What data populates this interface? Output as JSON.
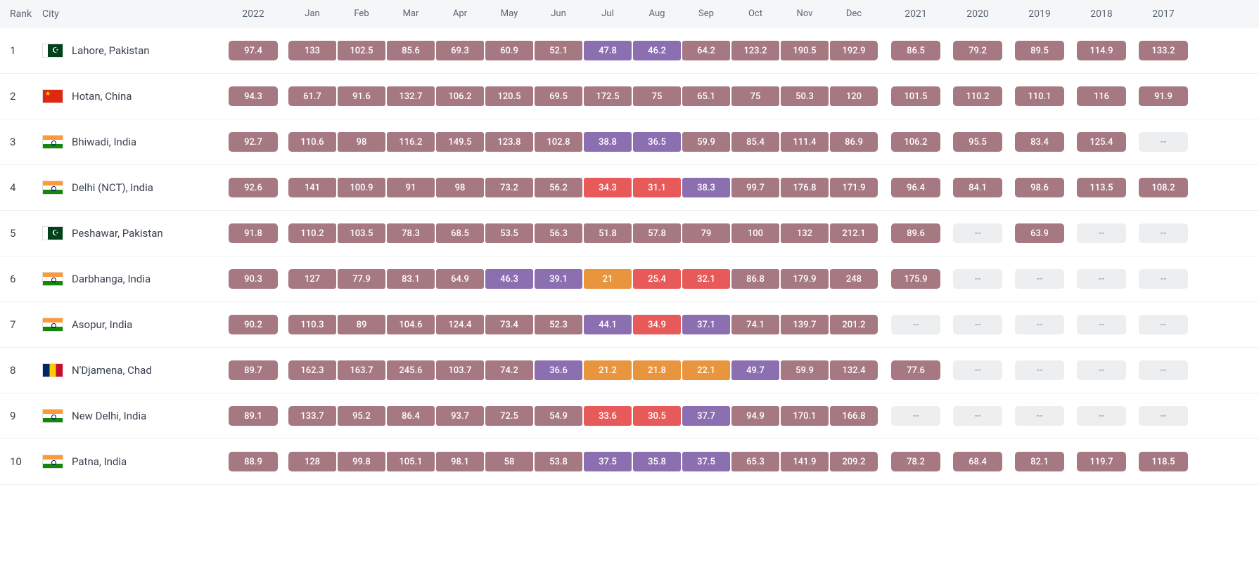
{
  "header": {
    "rank": "Rank",
    "city": "City",
    "year_main": "2022",
    "months": [
      "Jan",
      "Feb",
      "Mar",
      "Apr",
      "May",
      "Jun",
      "Jul",
      "Aug",
      "Sep",
      "Oct",
      "Nov",
      "Dec"
    ],
    "past_years": [
      "2021",
      "2020",
      "2019",
      "2018",
      "2017"
    ]
  },
  "colors": {
    "brown": "#a67881",
    "purple": "#8b6fb0",
    "red": "#e85a5a",
    "orange": "#e8953e",
    "empty_bg": "#eceef0",
    "empty_fg": "#9aa0a8",
    "header_bg": "#f4f6f8",
    "header_fg": "#5a6472",
    "text": "#3a4250"
  },
  "empty_marker": "--",
  "rows": [
    {
      "rank": "1",
      "flag": "pakistan",
      "city": "Lahore, Pakistan",
      "main": {
        "v": "97.4",
        "c": "brown"
      },
      "months": [
        {
          "v": "133",
          "c": "brown"
        },
        {
          "v": "102.5",
          "c": "brown"
        },
        {
          "v": "85.6",
          "c": "brown"
        },
        {
          "v": "69.3",
          "c": "brown"
        },
        {
          "v": "60.9",
          "c": "brown"
        },
        {
          "v": "52.1",
          "c": "brown"
        },
        {
          "v": "47.8",
          "c": "purple"
        },
        {
          "v": "46.2",
          "c": "purple"
        },
        {
          "v": "64.2",
          "c": "brown"
        },
        {
          "v": "123.2",
          "c": "brown"
        },
        {
          "v": "190.5",
          "c": "brown"
        },
        {
          "v": "192.9",
          "c": "brown"
        }
      ],
      "years": [
        {
          "v": "86.5",
          "c": "brown"
        },
        {
          "v": "79.2",
          "c": "brown"
        },
        {
          "v": "89.5",
          "c": "brown"
        },
        {
          "v": "114.9",
          "c": "brown"
        },
        {
          "v": "133.2",
          "c": "brown"
        }
      ]
    },
    {
      "rank": "2",
      "flag": "china",
      "city": "Hotan, China",
      "main": {
        "v": "94.3",
        "c": "brown"
      },
      "months": [
        {
          "v": "61.7",
          "c": "brown"
        },
        {
          "v": "91.6",
          "c": "brown"
        },
        {
          "v": "132.7",
          "c": "brown"
        },
        {
          "v": "106.2",
          "c": "brown"
        },
        {
          "v": "120.5",
          "c": "brown"
        },
        {
          "v": "69.5",
          "c": "brown"
        },
        {
          "v": "172.5",
          "c": "brown"
        },
        {
          "v": "75",
          "c": "brown"
        },
        {
          "v": "65.1",
          "c": "brown"
        },
        {
          "v": "75",
          "c": "brown"
        },
        {
          "v": "50.3",
          "c": "brown"
        },
        {
          "v": "120",
          "c": "brown"
        }
      ],
      "years": [
        {
          "v": "101.5",
          "c": "brown"
        },
        {
          "v": "110.2",
          "c": "brown"
        },
        {
          "v": "110.1",
          "c": "brown"
        },
        {
          "v": "116",
          "c": "brown"
        },
        {
          "v": "91.9",
          "c": "brown"
        }
      ]
    },
    {
      "rank": "3",
      "flag": "india",
      "city": "Bhiwadi, India",
      "main": {
        "v": "92.7",
        "c": "brown"
      },
      "months": [
        {
          "v": "110.6",
          "c": "brown"
        },
        {
          "v": "98",
          "c": "brown"
        },
        {
          "v": "116.2",
          "c": "brown"
        },
        {
          "v": "149.5",
          "c": "brown"
        },
        {
          "v": "123.8",
          "c": "brown"
        },
        {
          "v": "102.8",
          "c": "brown"
        },
        {
          "v": "38.8",
          "c": "purple"
        },
        {
          "v": "36.5",
          "c": "purple"
        },
        {
          "v": "59.9",
          "c": "brown"
        },
        {
          "v": "85.4",
          "c": "brown"
        },
        {
          "v": "111.4",
          "c": "brown"
        },
        {
          "v": "86.9",
          "c": "brown"
        }
      ],
      "years": [
        {
          "v": "106.2",
          "c": "brown"
        },
        {
          "v": "95.5",
          "c": "brown"
        },
        {
          "v": "83.4",
          "c": "brown"
        },
        {
          "v": "125.4",
          "c": "brown"
        },
        {
          "v": "--",
          "c": "empty"
        }
      ]
    },
    {
      "rank": "4",
      "flag": "india",
      "city": "Delhi (NCT), India",
      "main": {
        "v": "92.6",
        "c": "brown"
      },
      "months": [
        {
          "v": "141",
          "c": "brown"
        },
        {
          "v": "100.9",
          "c": "brown"
        },
        {
          "v": "91",
          "c": "brown"
        },
        {
          "v": "98",
          "c": "brown"
        },
        {
          "v": "73.2",
          "c": "brown"
        },
        {
          "v": "56.2",
          "c": "brown"
        },
        {
          "v": "34.3",
          "c": "red"
        },
        {
          "v": "31.1",
          "c": "red"
        },
        {
          "v": "38.3",
          "c": "purple"
        },
        {
          "v": "99.7",
          "c": "brown"
        },
        {
          "v": "176.8",
          "c": "brown"
        },
        {
          "v": "171.9",
          "c": "brown"
        }
      ],
      "years": [
        {
          "v": "96.4",
          "c": "brown"
        },
        {
          "v": "84.1",
          "c": "brown"
        },
        {
          "v": "98.6",
          "c": "brown"
        },
        {
          "v": "113.5",
          "c": "brown"
        },
        {
          "v": "108.2",
          "c": "brown"
        }
      ]
    },
    {
      "rank": "5",
      "flag": "pakistan",
      "city": "Peshawar, Pakistan",
      "main": {
        "v": "91.8",
        "c": "brown"
      },
      "months": [
        {
          "v": "110.2",
          "c": "brown"
        },
        {
          "v": "103.5",
          "c": "brown"
        },
        {
          "v": "78.3",
          "c": "brown"
        },
        {
          "v": "68.5",
          "c": "brown"
        },
        {
          "v": "53.5",
          "c": "brown"
        },
        {
          "v": "56.3",
          "c": "brown"
        },
        {
          "v": "51.8",
          "c": "brown"
        },
        {
          "v": "57.8",
          "c": "brown"
        },
        {
          "v": "79",
          "c": "brown"
        },
        {
          "v": "100",
          "c": "brown"
        },
        {
          "v": "132",
          "c": "brown"
        },
        {
          "v": "212.1",
          "c": "brown"
        }
      ],
      "years": [
        {
          "v": "89.6",
          "c": "brown"
        },
        {
          "v": "--",
          "c": "empty"
        },
        {
          "v": "63.9",
          "c": "brown"
        },
        {
          "v": "--",
          "c": "empty"
        },
        {
          "v": "--",
          "c": "empty"
        }
      ]
    },
    {
      "rank": "6",
      "flag": "india",
      "city": "Darbhanga, India",
      "main": {
        "v": "90.3",
        "c": "brown"
      },
      "months": [
        {
          "v": "127",
          "c": "brown"
        },
        {
          "v": "77.9",
          "c": "brown"
        },
        {
          "v": "83.1",
          "c": "brown"
        },
        {
          "v": "64.9",
          "c": "brown"
        },
        {
          "v": "46.3",
          "c": "purple"
        },
        {
          "v": "39.1",
          "c": "purple"
        },
        {
          "v": "21",
          "c": "orange"
        },
        {
          "v": "25.4",
          "c": "red"
        },
        {
          "v": "32.1",
          "c": "red"
        },
        {
          "v": "86.8",
          "c": "brown"
        },
        {
          "v": "179.9",
          "c": "brown"
        },
        {
          "v": "248",
          "c": "brown"
        }
      ],
      "years": [
        {
          "v": "175.9",
          "c": "brown"
        },
        {
          "v": "--",
          "c": "empty"
        },
        {
          "v": "--",
          "c": "empty"
        },
        {
          "v": "--",
          "c": "empty"
        },
        {
          "v": "--",
          "c": "empty"
        }
      ]
    },
    {
      "rank": "7",
      "flag": "india",
      "city": "Asopur, India",
      "main": {
        "v": "90.2",
        "c": "brown"
      },
      "months": [
        {
          "v": "110.3",
          "c": "brown"
        },
        {
          "v": "89",
          "c": "brown"
        },
        {
          "v": "104.6",
          "c": "brown"
        },
        {
          "v": "124.4",
          "c": "brown"
        },
        {
          "v": "73.4",
          "c": "brown"
        },
        {
          "v": "52.3",
          "c": "brown"
        },
        {
          "v": "44.1",
          "c": "purple"
        },
        {
          "v": "34.9",
          "c": "red"
        },
        {
          "v": "37.1",
          "c": "purple"
        },
        {
          "v": "74.1",
          "c": "brown"
        },
        {
          "v": "139.7",
          "c": "brown"
        },
        {
          "v": "201.2",
          "c": "brown"
        }
      ],
      "years": [
        {
          "v": "--",
          "c": "empty"
        },
        {
          "v": "--",
          "c": "empty"
        },
        {
          "v": "--",
          "c": "empty"
        },
        {
          "v": "--",
          "c": "empty"
        },
        {
          "v": "--",
          "c": "empty"
        }
      ]
    },
    {
      "rank": "8",
      "flag": "chad",
      "city": "N'Djamena, Chad",
      "main": {
        "v": "89.7",
        "c": "brown"
      },
      "months": [
        {
          "v": "162.3",
          "c": "brown"
        },
        {
          "v": "163.7",
          "c": "brown"
        },
        {
          "v": "245.6",
          "c": "brown"
        },
        {
          "v": "103.7",
          "c": "brown"
        },
        {
          "v": "74.2",
          "c": "brown"
        },
        {
          "v": "36.6",
          "c": "purple"
        },
        {
          "v": "21.2",
          "c": "orange"
        },
        {
          "v": "21.8",
          "c": "orange"
        },
        {
          "v": "22.1",
          "c": "orange"
        },
        {
          "v": "49.7",
          "c": "purple"
        },
        {
          "v": "59.9",
          "c": "brown"
        },
        {
          "v": "132.4",
          "c": "brown"
        }
      ],
      "years": [
        {
          "v": "77.6",
          "c": "brown"
        },
        {
          "v": "--",
          "c": "empty"
        },
        {
          "v": "--",
          "c": "empty"
        },
        {
          "v": "--",
          "c": "empty"
        },
        {
          "v": "--",
          "c": "empty"
        }
      ]
    },
    {
      "rank": "9",
      "flag": "india",
      "city": "New Delhi, India",
      "main": {
        "v": "89.1",
        "c": "brown"
      },
      "months": [
        {
          "v": "133.7",
          "c": "brown"
        },
        {
          "v": "95.2",
          "c": "brown"
        },
        {
          "v": "86.4",
          "c": "brown"
        },
        {
          "v": "93.7",
          "c": "brown"
        },
        {
          "v": "72.5",
          "c": "brown"
        },
        {
          "v": "54.9",
          "c": "brown"
        },
        {
          "v": "33.6",
          "c": "red"
        },
        {
          "v": "30.5",
          "c": "red"
        },
        {
          "v": "37.7",
          "c": "purple"
        },
        {
          "v": "94.9",
          "c": "brown"
        },
        {
          "v": "170.1",
          "c": "brown"
        },
        {
          "v": "166.8",
          "c": "brown"
        }
      ],
      "years": [
        {
          "v": "--",
          "c": "empty"
        },
        {
          "v": "--",
          "c": "empty"
        },
        {
          "v": "--",
          "c": "empty"
        },
        {
          "v": "--",
          "c": "empty"
        },
        {
          "v": "--",
          "c": "empty"
        }
      ]
    },
    {
      "rank": "10",
      "flag": "india",
      "city": "Patna, India",
      "main": {
        "v": "88.9",
        "c": "brown"
      },
      "months": [
        {
          "v": "128",
          "c": "brown"
        },
        {
          "v": "99.8",
          "c": "brown"
        },
        {
          "v": "105.1",
          "c": "brown"
        },
        {
          "v": "98.1",
          "c": "brown"
        },
        {
          "v": "58",
          "c": "brown"
        },
        {
          "v": "53.8",
          "c": "brown"
        },
        {
          "v": "37.5",
          "c": "purple"
        },
        {
          "v": "35.8",
          "c": "purple"
        },
        {
          "v": "37.5",
          "c": "purple"
        },
        {
          "v": "65.3",
          "c": "brown"
        },
        {
          "v": "141.9",
          "c": "brown"
        },
        {
          "v": "209.2",
          "c": "brown"
        }
      ],
      "years": [
        {
          "v": "78.2",
          "c": "brown"
        },
        {
          "v": "68.4",
          "c": "brown"
        },
        {
          "v": "82.1",
          "c": "brown"
        },
        {
          "v": "119.7",
          "c": "brown"
        },
        {
          "v": "118.5",
          "c": "brown"
        }
      ]
    }
  ]
}
